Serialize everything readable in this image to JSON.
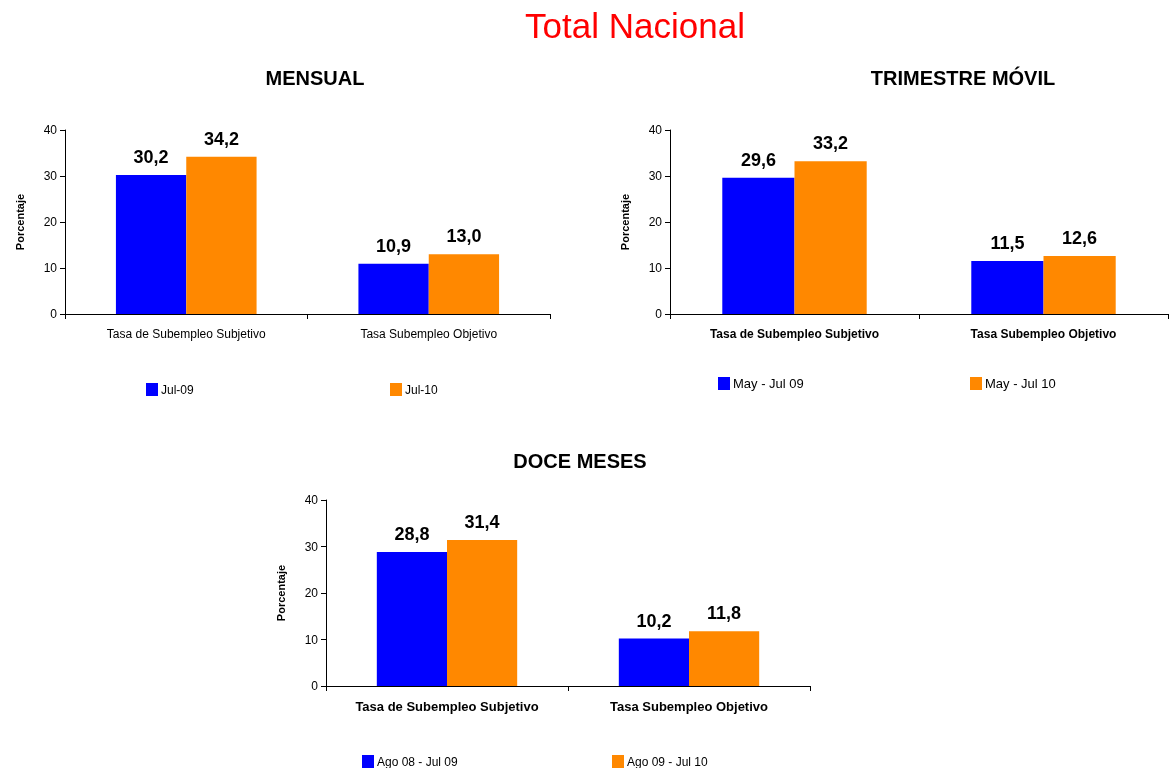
{
  "chart_data": [
    {
      "type": "other",
      "title": "Total Nacional"
    },
    {
      "type": "bar",
      "title": "MENSUAL",
      "ylabel": "Porcentaje",
      "categories": [
        "Tasa de Subempleo Subjetivo",
        "Tasa Subempleo Objetivo"
      ],
      "series": [
        {
          "name": "Jul-09",
          "color": "#0000ff",
          "values": [
            30.2,
            10.9
          ],
          "value_labels": [
            "30,2",
            "10,9"
          ]
        },
        {
          "name": "Jul-10",
          "color": "#ff8800",
          "values": [
            34.2,
            13.0
          ],
          "value_labels": [
            "34,2",
            "13,0"
          ]
        }
      ],
      "ylim": [
        0,
        40
      ],
      "yticks": [
        0,
        10,
        20,
        30,
        40
      ],
      "grid": false,
      "legend": "bottom"
    },
    {
      "type": "bar",
      "title": "TRIMESTRE MÓVIL",
      "ylabel": "Porcentaje",
      "categories": [
        "Tasa de Subempleo Subjetivo",
        "Tasa Subempleo Objetivo"
      ],
      "series": [
        {
          "name": "May - Jul 09",
          "color": "#0000ff",
          "values": [
            29.6,
            11.5
          ],
          "value_labels": [
            "29,6",
            "11,5"
          ]
        },
        {
          "name": "May - Jul 10",
          "color": "#ff8800",
          "values": [
            33.2,
            12.6
          ],
          "value_labels": [
            "33,2",
            "12,6"
          ]
        }
      ],
      "ylim": [
        0,
        40
      ],
      "yticks": [
        0,
        10,
        20,
        30,
        40
      ],
      "grid": false,
      "legend": "bottom"
    },
    {
      "type": "bar",
      "title": "DOCE MESES",
      "ylabel": "Porcentaje",
      "categories": [
        "Tasa de Subempleo Subjetivo",
        "Tasa Subempleo Objetivo"
      ],
      "series": [
        {
          "name": "Ago 08 - Jul 09",
          "color": "#0000ff",
          "values": [
            28.8,
            10.2
          ],
          "value_labels": [
            "28,8",
            "10,2"
          ]
        },
        {
          "name": "Ago 09 - Jul 10",
          "color": "#ff8800",
          "values": [
            31.4,
            11.8
          ],
          "value_labels": [
            "31,4",
            "11,8"
          ]
        }
      ],
      "ylim": [
        0,
        40
      ],
      "yticks": [
        0,
        10,
        20,
        30,
        40
      ],
      "grid": false,
      "legend": "bottom"
    }
  ]
}
